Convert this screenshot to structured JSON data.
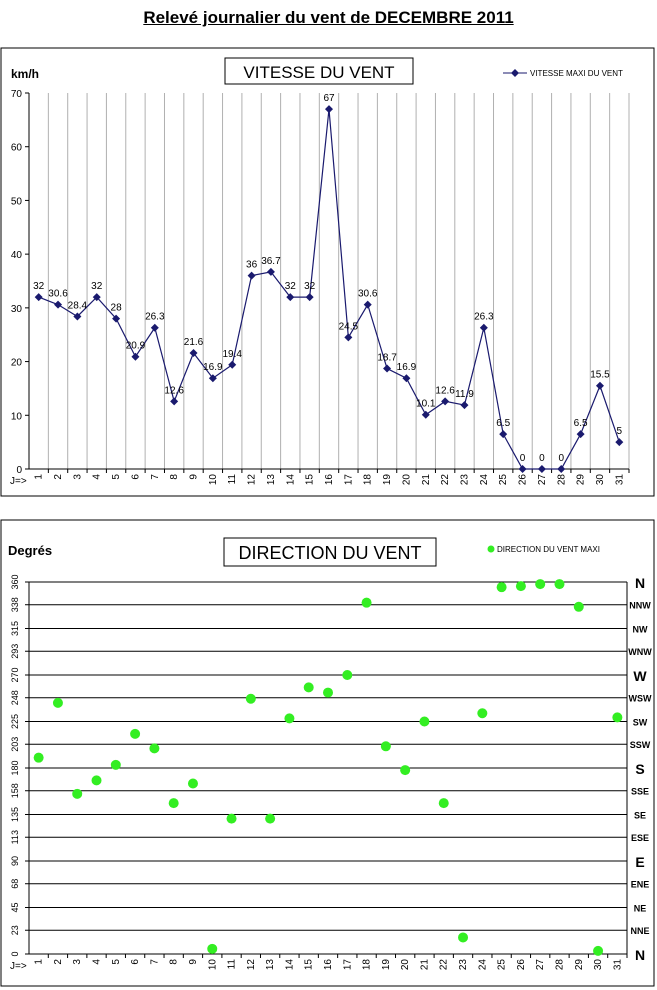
{
  "page": {
    "title": "Relevé journalier du vent de DECEMBRE 2011"
  },
  "colors": {
    "speed_line": "#1a1a6e",
    "direction_marker": "#33ee22",
    "grid_speed": "#b0b0b0",
    "grid_dir": "#000000"
  },
  "chart_data": [
    {
      "type": "line",
      "title": "VITESSE DU VENT",
      "ylabel": "km/h",
      "x_prefix": "J=>",
      "ylim": [
        0,
        70
      ],
      "yticks": [
        0,
        10,
        20,
        30,
        40,
        50,
        60,
        70
      ],
      "legend_position": "top-right",
      "series": [
        {
          "name": "VITESSE MAXI DU VENT",
          "x": [
            1,
            2,
            3,
            4,
            5,
            6,
            7,
            8,
            9,
            10,
            11,
            12,
            13,
            14,
            15,
            16,
            17,
            18,
            19,
            20,
            21,
            22,
            23,
            24,
            25,
            26,
            27,
            28,
            29,
            30,
            31
          ],
          "values": [
            32,
            30.6,
            28.4,
            32,
            28,
            20.9,
            26.3,
            12.6,
            21.6,
            16.9,
            19.4,
            36,
            36.7,
            32,
            32,
            67,
            24.5,
            30.6,
            18.7,
            16.9,
            10.1,
            12.6,
            11.9,
            26.3,
            6.5,
            0,
            0,
            0,
            6.5,
            15.5,
            5
          ],
          "labels": [
            "32",
            "30.6",
            "28.4",
            "32",
            "28",
            "20.9",
            "26.3",
            "12.6",
            "21.6",
            "16.9",
            "19.4",
            "36",
            "36.7",
            "32",
            "32",
            "67",
            "24.5",
            "30.6",
            "18.7",
            "16.9",
            "10.1",
            "12.6",
            "11.9",
            "26.3",
            "6.5",
            "0",
            "0",
            "0",
            "6.5",
            "15.5",
            "5"
          ]
        }
      ]
    },
    {
      "type": "scatter",
      "title": "DIRECTION DU VENT",
      "ylabel": "Degrés",
      "x_prefix": "J=>",
      "ylim": [
        0,
        360
      ],
      "yticks": [
        0,
        23,
        45,
        68,
        90,
        113,
        135,
        158,
        180,
        203,
        225,
        248,
        270,
        293,
        315,
        338,
        360
      ],
      "compass_labels": [
        {
          "deg": 360,
          "label": "N",
          "big": true
        },
        {
          "deg": 338,
          "label": "NNW"
        },
        {
          "deg": 315,
          "label": "NW"
        },
        {
          "deg": 293,
          "label": "WNW"
        },
        {
          "deg": 270,
          "label": "W",
          "big": true
        },
        {
          "deg": 248,
          "label": "WSW"
        },
        {
          "deg": 225,
          "label": "SW"
        },
        {
          "deg": 203,
          "label": "SSW"
        },
        {
          "deg": 180,
          "label": "S",
          "big": true
        },
        {
          "deg": 158,
          "label": "SSE"
        },
        {
          "deg": 135,
          "label": "SE"
        },
        {
          "deg": 113,
          "label": "ESE"
        },
        {
          "deg": 90,
          "label": "E",
          "big": true
        },
        {
          "deg": 68,
          "label": "ENE"
        },
        {
          "deg": 45,
          "label": "NE"
        },
        {
          "deg": 23,
          "label": "NNE"
        },
        {
          "deg": 0,
          "label": "N",
          "big": true
        }
      ],
      "legend_position": "top-right",
      "series": [
        {
          "name": "DIRECTION DU VENT MAXI",
          "x": [
            1,
            2,
            3,
            4,
            5,
            6,
            7,
            8,
            9,
            10,
            11,
            12,
            13,
            14,
            15,
            16,
            17,
            18,
            19,
            20,
            21,
            22,
            23,
            24,
            25,
            26,
            27,
            28,
            29,
            30,
            31
          ],
          "values": [
            190,
            243,
            155,
            168,
            183,
            213,
            199,
            146,
            165,
            5,
            131,
            247,
            131,
            228,
            258,
            253,
            270,
            340,
            201,
            178,
            225,
            146,
            16,
            233,
            355,
            356,
            358,
            358,
            336,
            3,
            229
          ]
        }
      ]
    }
  ]
}
